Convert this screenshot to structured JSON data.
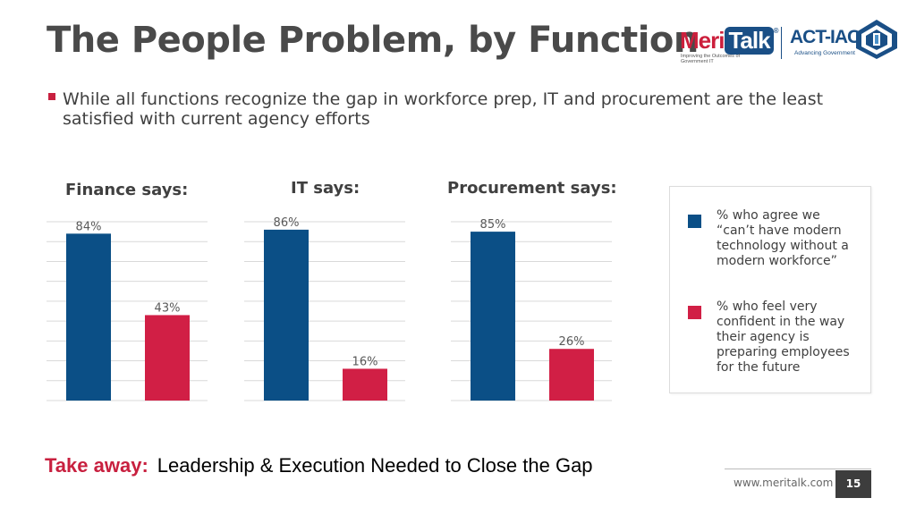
{
  "slide": {
    "title": "The People Problem, by Function",
    "bullet": "While all functions recognize the gap in workforce prep, IT and procurement are the least satisfied with current agency efforts",
    "takeaway_label": "Take away:",
    "takeaway_text": "Leadership & Execution Needed to Close the Gap",
    "footer_url": "www.meritalk.com",
    "page_number": "15"
  },
  "logos": {
    "meritalk_main": "Meri",
    "meritalk_bubble": "Talk",
    "meritalk_tagline": "Improving the Outcomes of Government IT",
    "actiac_name": "ACT-IAC",
    "actiac_tagline": "Advancing Government"
  },
  "colors": {
    "series_agree": "#0b4f86",
    "series_confident": "#d11f45",
    "grid": "#d9d9d9",
    "label": "#595959"
  },
  "chart_data": [
    {
      "type": "bar",
      "title": "Finance says:",
      "categories": [
        "",
        ""
      ],
      "values": [
        84,
        43
      ],
      "labels": [
        "84%",
        "43%"
      ],
      "ylim": [
        0,
        90
      ],
      "grid": true
    },
    {
      "type": "bar",
      "title": "IT says:",
      "categories": [
        "",
        ""
      ],
      "values": [
        86,
        16
      ],
      "labels": [
        "86%",
        "16%"
      ],
      "ylim": [
        0,
        90
      ],
      "grid": true
    },
    {
      "type": "bar",
      "title": "Procurement says:",
      "categories": [
        "",
        ""
      ],
      "values": [
        85,
        26
      ],
      "labels": [
        "85%",
        "26%"
      ],
      "ylim": [
        0,
        90
      ],
      "grid": true
    }
  ],
  "legend": {
    "placement": "right",
    "items": [
      {
        "text": "% who agree we “can’t have modern technology without a modern workforce”"
      },
      {
        "text": "% who feel very confident in the way their agency is preparing employees for the future"
      }
    ]
  }
}
